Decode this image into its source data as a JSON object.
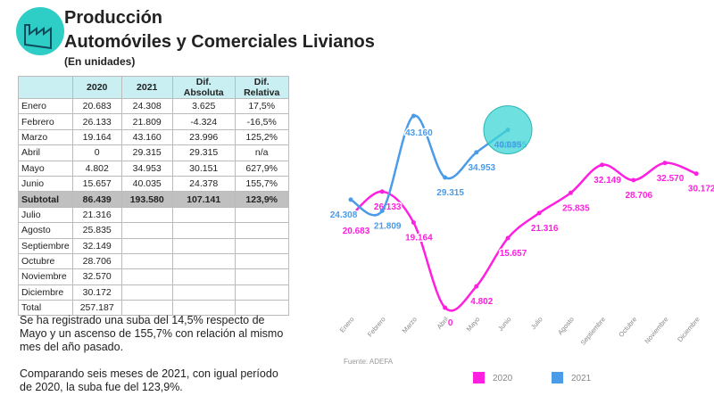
{
  "header": {
    "title": "Producción",
    "subtitle": "Automóviles y Comerciales Livianos",
    "unit": "(En unidades)"
  },
  "table": {
    "columns": [
      "2020",
      "2021",
      "Dif. Absoluta",
      "Dif. Relativa"
    ],
    "rows": [
      [
        "Enero",
        "20.683",
        "24.308",
        "3.625",
        "17,5%"
      ],
      [
        "Febrero",
        "26.133",
        "21.809",
        "-4.324",
        "-16,5%"
      ],
      [
        "Marzo",
        "19.164",
        "43.160",
        "23.996",
        "125,2%"
      ],
      [
        "Abril",
        "0",
        "29.315",
        "29.315",
        "n/a"
      ],
      [
        "Mayo",
        "4.802",
        "34.953",
        "30.151",
        "627,9%"
      ],
      [
        "Junio",
        "15.657",
        "40.035",
        "24.378",
        "155,7%"
      ],
      [
        "Subtotal",
        "86.439",
        "193.580",
        "107.141",
        "123,9%"
      ],
      [
        "Julio",
        "21.316"
      ],
      [
        "Agosto",
        "25.835"
      ],
      [
        "Septiembre",
        "32.149"
      ],
      [
        "Octubre",
        "28.706"
      ],
      [
        "Noviembre",
        "32.570"
      ],
      [
        "Diciembre",
        "30.172"
      ],
      [
        "Total",
        "257.187"
      ]
    ]
  },
  "notes": [
    "Se ha registrado una suba del 14,5% respecto de Mayo y un ascenso de 155,7% con relación al mismo mes del año pasado.",
    "Comparando seis meses de 2021, con igual período de 2020, la suba fue del 123,9%."
  ],
  "chart_data": {
    "type": "line",
    "source": "Fuente: ADEFA",
    "categories": [
      "Enero",
      "Febrero",
      "Marzo",
      "Abril",
      "Mayo",
      "Junio",
      "Julio",
      "Agosto",
      "Septiembre",
      "Octubre",
      "Noviembre",
      "Diciembre"
    ],
    "series": [
      {
        "name": "2020",
        "color": "#ff1fe0",
        "values": [
          20683,
          26133,
          19164,
          0,
          4802,
          15657,
          21316,
          25835,
          32149,
          28706,
          32570,
          30172
        ],
        "value_labels": [
          "20.683",
          "26.133",
          "19.164",
          "0",
          "4.802",
          "15.657",
          "21.316",
          "25.835",
          "32.149",
          "28.706",
          "32.570",
          "30.172"
        ]
      },
      {
        "name": "2021",
        "color": "#4a9be8",
        "values": [
          24308,
          21809,
          43160,
          29315,
          34953,
          40035,
          null,
          null,
          null,
          null,
          null,
          null
        ],
        "value_labels": [
          "24.308",
          "21.809",
          "43.160",
          "29.315",
          "34.953",
          "40.035",
          null,
          null,
          null,
          null,
          null,
          null
        ]
      }
    ]
  }
}
